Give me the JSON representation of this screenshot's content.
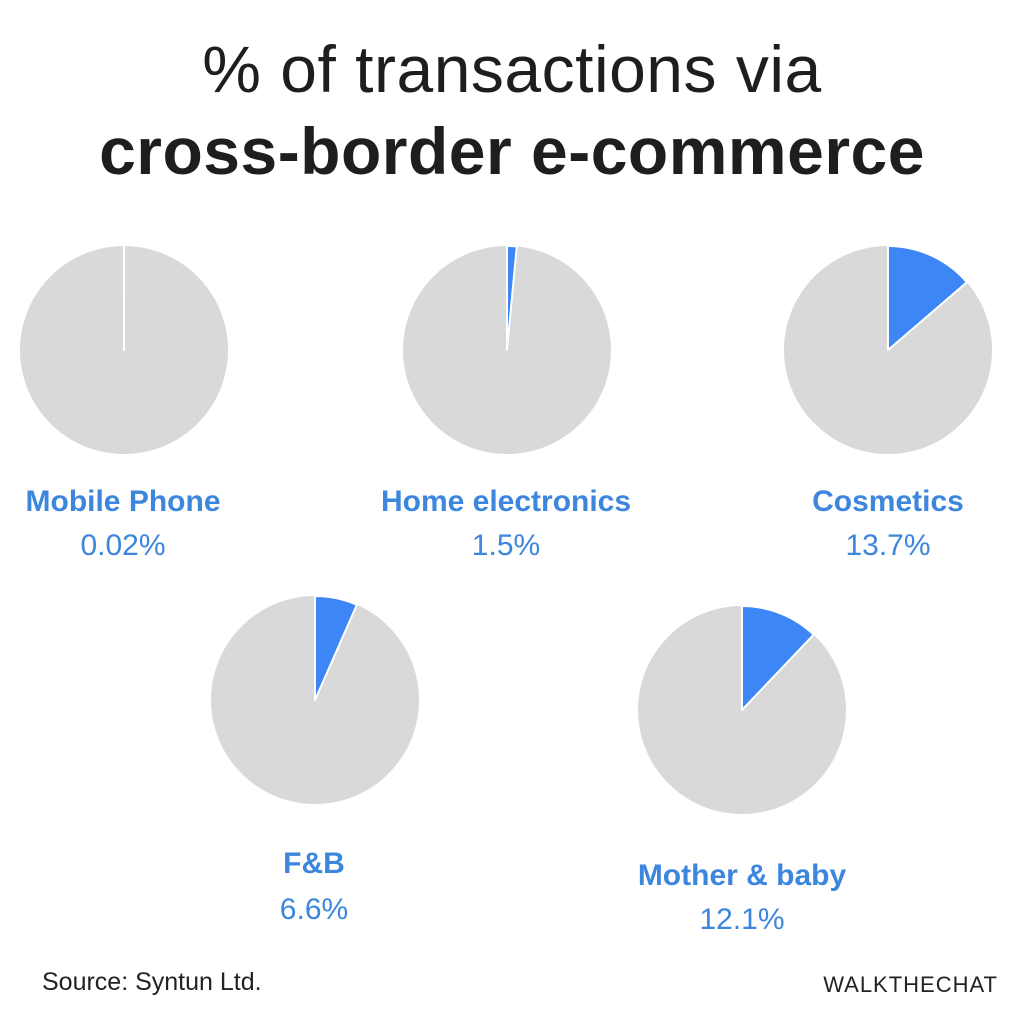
{
  "title": {
    "line1": "% of transactions via",
    "line2": "cross-border e-commerce"
  },
  "chart_data": {
    "type": "pie",
    "colors": {
      "share": "#3d86f5",
      "rest": "#d9d9d9"
    },
    "items": [
      {
        "label": "Mobile Phone",
        "value": 0.02,
        "display": "0.02%"
      },
      {
        "label": "Home electronics",
        "value": 1.5,
        "display": "1.5%"
      },
      {
        "label": "Cosmetics",
        "value": 13.7,
        "display": "13.7%"
      },
      {
        "label": "F&B",
        "value": 6.6,
        "display": "6.6%"
      },
      {
        "label": "Mother & baby",
        "value": 12.1,
        "display": "12.1%"
      }
    ]
  },
  "footer": {
    "source": "Source: Syntun Ltd.",
    "brand": "WALKTHECHAT"
  }
}
